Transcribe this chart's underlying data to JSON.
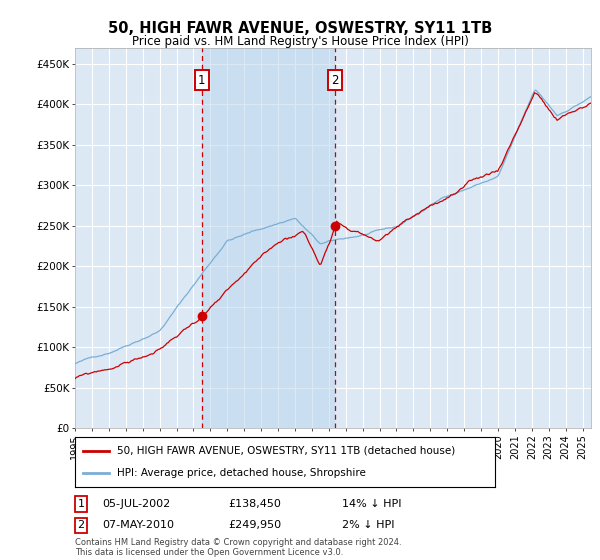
{
  "title": "50, HIGH FAWR AVENUE, OSWESTRY, SY11 1TB",
  "subtitle": "Price paid vs. HM Land Registry's House Price Index (HPI)",
  "ylabel_ticks": [
    "£0",
    "£50K",
    "£100K",
    "£150K",
    "£200K",
    "£250K",
    "£300K",
    "£350K",
    "£400K",
    "£450K"
  ],
  "ylim": [
    0,
    470000
  ],
  "xlim_start": 1995.0,
  "xlim_end": 2025.5,
  "background_color": "#ffffff",
  "plot_bg_color": "#dce9f5",
  "shade_color": "#b8d4ec",
  "grid_color": "#ffffff",
  "legend_label_red": "50, HIGH FAWR AVENUE, OSWESTRY, SY11 1TB (detached house)",
  "legend_label_blue": "HPI: Average price, detached house, Shropshire",
  "sale1_date": "05-JUL-2002",
  "sale1_price": "£138,450",
  "sale1_hpi": "14% ↓ HPI",
  "sale1_year": 2002.5,
  "sale1_value": 138450,
  "sale2_date": "07-MAY-2010",
  "sale2_price": "£249,950",
  "sale2_hpi": "2% ↓ HPI",
  "sale2_year": 2010.35,
  "sale2_value": 249950,
  "footer": "Contains HM Land Registry data © Crown copyright and database right 2024.\nThis data is licensed under the Open Government Licence v3.0.",
  "hpi_color": "#7aaed4",
  "price_color": "#cc0000",
  "dashed_color": "#cc0000",
  "marker_box_color": "#cc0000",
  "marker_dot_color": "#cc0000"
}
